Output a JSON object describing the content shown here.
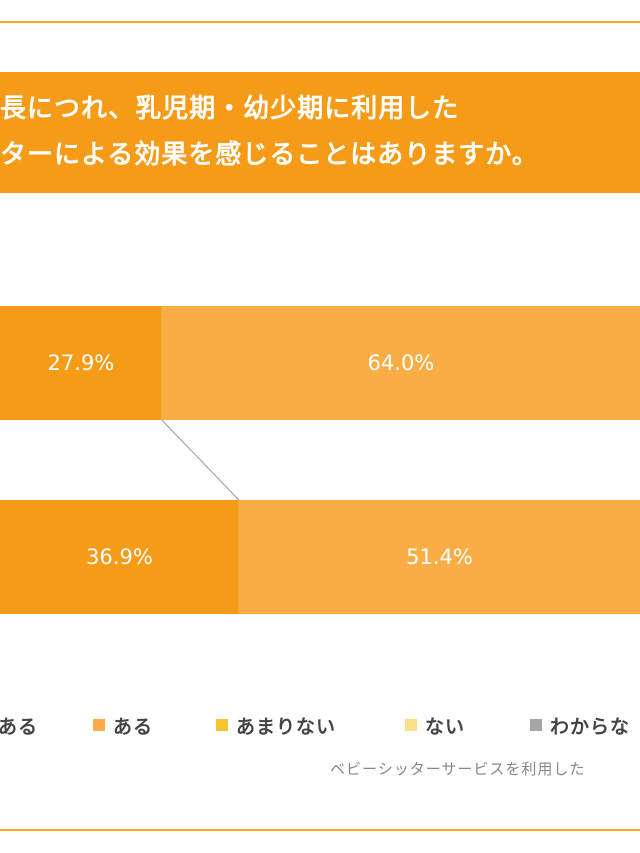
{
  "title": {
    "line1": "長につれ、乳児期・幼少期に利用した",
    "line2": "ターによる効果を感じることはありますか。"
  },
  "chart_data": {
    "type": "bar",
    "orientation": "horizontal",
    "stacked": true,
    "percent_stacked": true,
    "categories": [
      "",
      ""
    ],
    "series": [
      {
        "name": "ある",
        "color": "#f59b17",
        "values": [
          27.9,
          36.9
        ],
        "labels": [
          "27.9%",
          "36.9%"
        ]
      },
      {
        "name": "ある",
        "color": "#f8ae45",
        "values": [
          64.0,
          51.4
        ],
        "labels": [
          "64.0%",
          "51.4%"
        ]
      },
      {
        "name": "あまりない",
        "color": "#f5c431",
        "values": [
          null,
          null
        ],
        "labels": [
          "",
          ""
        ]
      },
      {
        "name": "ない",
        "color": "#fbe08a",
        "values": [
          null,
          null
        ],
        "labels": [
          "",
          ""
        ]
      },
      {
        "name": "わからな",
        "color": "#a6a6a6",
        "values": [
          null,
          null
        ],
        "labels": [
          "",
          ""
        ]
      }
    ],
    "legend_position": "bottom",
    "grid": false,
    "connector_lines": true
  },
  "legend": {
    "items": [
      {
        "label": "ある",
        "color": "#f59b17"
      },
      {
        "label": "ある",
        "color": "#f8ae45"
      },
      {
        "label": "あまりない",
        "color": "#f5c431"
      },
      {
        "label": "ない",
        "color": "#fbe08a"
      },
      {
        "label": "わからな",
        "color": "#a6a6a6"
      }
    ]
  },
  "source": "ベビーシッターサービスを利用した"
}
